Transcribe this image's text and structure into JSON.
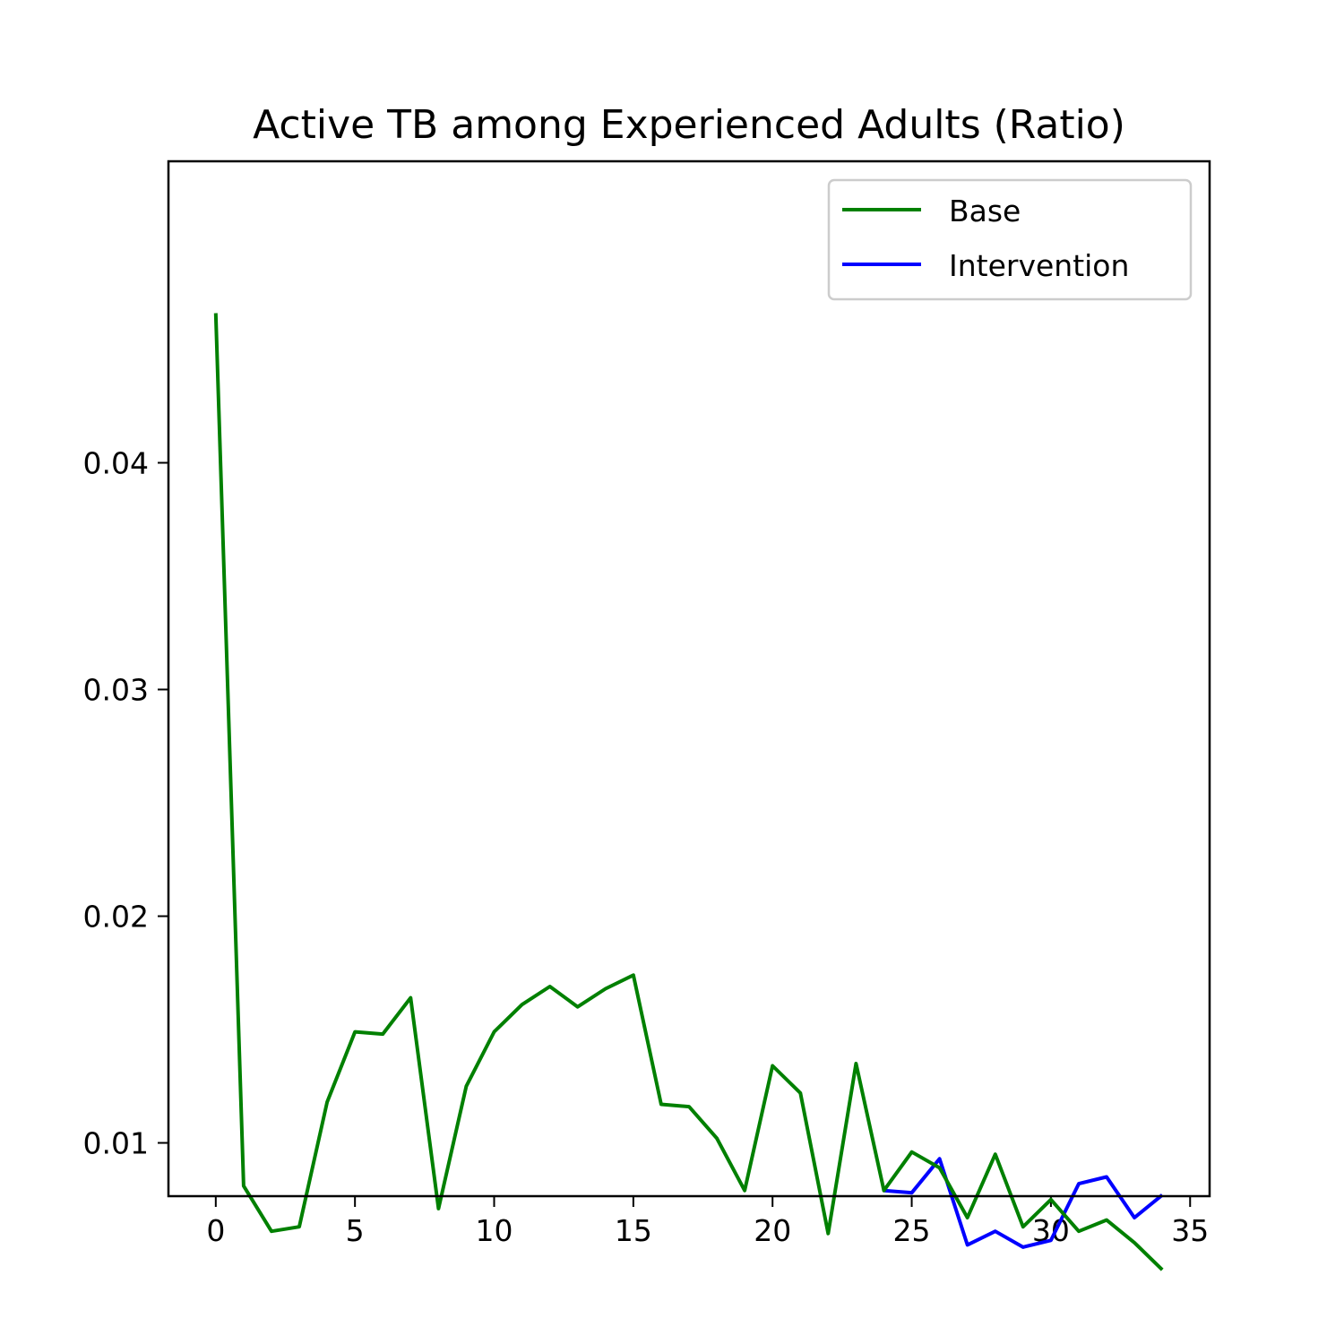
{
  "chart_data": {
    "type": "line",
    "title": "Active TB among Experienced Adults (Ratio)",
    "xlabel": "",
    "ylabel": "",
    "xlim": [
      -1.7,
      35.7
    ],
    "ylim": [
      0.00765,
      0.0533
    ],
    "x_ticks": [
      0,
      5,
      10,
      15,
      20,
      25,
      30,
      35
    ],
    "y_ticks": [
      0.01,
      0.02,
      0.03,
      0.04
    ],
    "x_tick_labels": [
      "0",
      "5",
      "10",
      "15",
      "20",
      "25",
      "30",
      "35"
    ],
    "y_tick_labels": [
      "0.01",
      "0.02",
      "0.03",
      "0.04"
    ],
    "grid": false,
    "legend_position": "top-right",
    "series": [
      {
        "name": "Base",
        "color": "#008000",
        "x": [
          0,
          1,
          2,
          3,
          4,
          5,
          6,
          7,
          8,
          9,
          10,
          11,
          12,
          13,
          14,
          15,
          16,
          17,
          18,
          19,
          20,
          21,
          22,
          23,
          24,
          25,
          26,
          27,
          28,
          29,
          30,
          31,
          32,
          33,
          34
        ],
        "values": [
          0.0466,
          0.0081,
          0.0061,
          0.0063,
          0.0118,
          0.0149,
          0.0148,
          0.0164,
          0.0071,
          0.0125,
          0.0149,
          0.0161,
          0.0169,
          0.016,
          0.0168,
          0.0174,
          0.0117,
          0.0116,
          0.0102,
          0.0079,
          0.0134,
          0.0122,
          0.006,
          0.0135,
          0.0079,
          0.0096,
          0.0089,
          0.0067,
          0.0095,
          0.0063,
          0.0075,
          0.0061,
          0.0066,
          0.0056,
          0.0044
        ]
      },
      {
        "name": "Intervention",
        "color": "#0000ff",
        "x": [
          24,
          25,
          26,
          27,
          28,
          29,
          30,
          31,
          32,
          33,
          34
        ],
        "values": [
          0.0079,
          0.0078,
          0.0093,
          0.0055,
          0.0061,
          0.0054,
          0.0057,
          0.0082,
          0.0085,
          0.0067,
          0.0077
        ]
      }
    ]
  }
}
